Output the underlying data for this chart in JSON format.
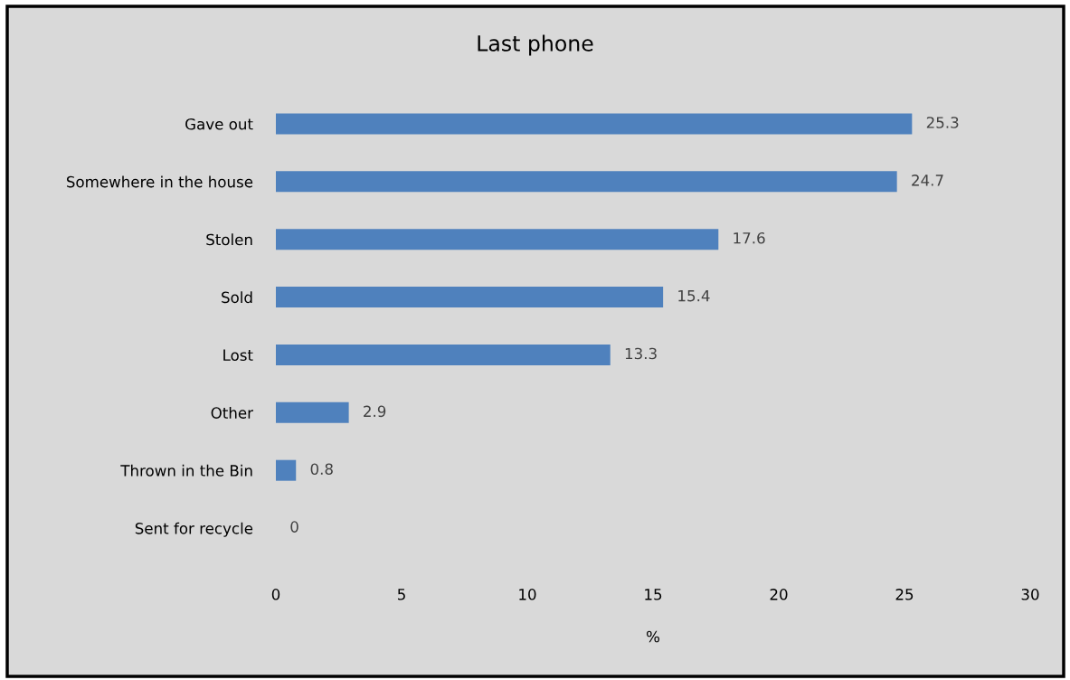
{
  "chart_data": {
    "type": "bar",
    "orientation": "horizontal",
    "title": "Last phone",
    "xlabel": "%",
    "categories": [
      "Gave out",
      "Somewhere in the house",
      "Stolen",
      "Sold",
      "Lost",
      "Other",
      "Thrown in the Bin",
      "Sent for recycle"
    ],
    "values": [
      25.3,
      24.7,
      17.6,
      15.4,
      13.3,
      2.9,
      0.8,
      0
    ],
    "color": "#4f81bd",
    "xlim": [
      0,
      30
    ],
    "xticks": [
      0,
      5,
      10,
      15,
      20,
      25,
      30
    ],
    "data_labels": true,
    "grid": false
  }
}
